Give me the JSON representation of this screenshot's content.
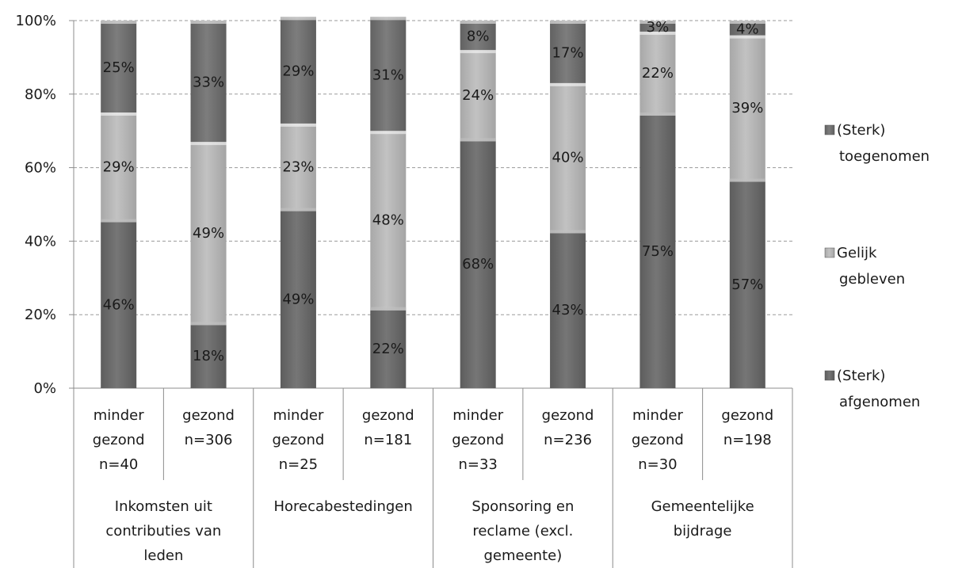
{
  "chart_data": {
    "type": "bar",
    "stacked": true,
    "normalized": true,
    "title": "",
    "xlabel": "",
    "ylabel": "",
    "ylim": [
      0,
      100
    ],
    "yticks": [
      "0%",
      "20%",
      "40%",
      "60%",
      "80%",
      "100%"
    ],
    "grid": true,
    "legend_position": "right",
    "groups": [
      "Inkomsten uit contributies van leden",
      "Horecabestedingen",
      "Sponsoring en reclame (excl. gemeente)",
      "Gemeentelijke bijdrage"
    ],
    "group_lines": [
      [
        "Inkomsten uit",
        "contributies van",
        "leden"
      ],
      [
        "Horecabestedingen"
      ],
      [
        "Sponsoring en",
        "reclame (excl.",
        "gemeente)"
      ],
      [
        "Gemeentelijke",
        "bijdrage"
      ]
    ],
    "categories": [
      "minder gezond n=40",
      "gezond n=306",
      "minder gezond n=25",
      "gezond n=181",
      "minder gezond n=33",
      "gezond n=236",
      "minder gezond n=30",
      "gezond n=198"
    ],
    "category_lines": [
      [
        "minder",
        "gezond",
        "n=40"
      ],
      [
        "gezond",
        "n=306"
      ],
      [
        "minder",
        "gezond",
        "n=25"
      ],
      [
        "gezond",
        "n=181"
      ],
      [
        "minder",
        "gezond",
        "n=33"
      ],
      [
        "gezond",
        "n=236"
      ],
      [
        "minder",
        "gezond",
        "n=30"
      ],
      [
        "gezond",
        "n=198"
      ]
    ],
    "series": [
      {
        "name": "(Sterk) afgenomen",
        "color": "#6b6b6b",
        "values": [
          46,
          18,
          49,
          22,
          68,
          43,
          75,
          57
        ],
        "labels": [
          "46%",
          "18%",
          "49%",
          "22%",
          "68%",
          "43%",
          "75%",
          "57%"
        ]
      },
      {
        "name": "Gelijk gebleven",
        "color": "#b2b2b2",
        "values": [
          29,
          49,
          23,
          48,
          24,
          40,
          22,
          39
        ],
        "labels": [
          "29%",
          "49%",
          "23%",
          "48%",
          "24%",
          "40%",
          "22%",
          "39%"
        ]
      },
      {
        "name": "(Sterk) toegenomen",
        "color": "#737373",
        "values": [
          25,
          33,
          29,
          31,
          8,
          17,
          3,
          4
        ],
        "labels": [
          "25%",
          "33%",
          "29%",
          "31%",
          "8%",
          "17%",
          "3%",
          "4%"
        ]
      }
    ],
    "legend": [
      {
        "series": 2,
        "lines": [
          "(Sterk)",
          "toegenomen"
        ]
      },
      {
        "series": 1,
        "lines": [
          "Gelijk",
          "gebleven"
        ]
      },
      {
        "series": 0,
        "lines": [
          "(Sterk)",
          "afgenomen"
        ]
      }
    ]
  }
}
